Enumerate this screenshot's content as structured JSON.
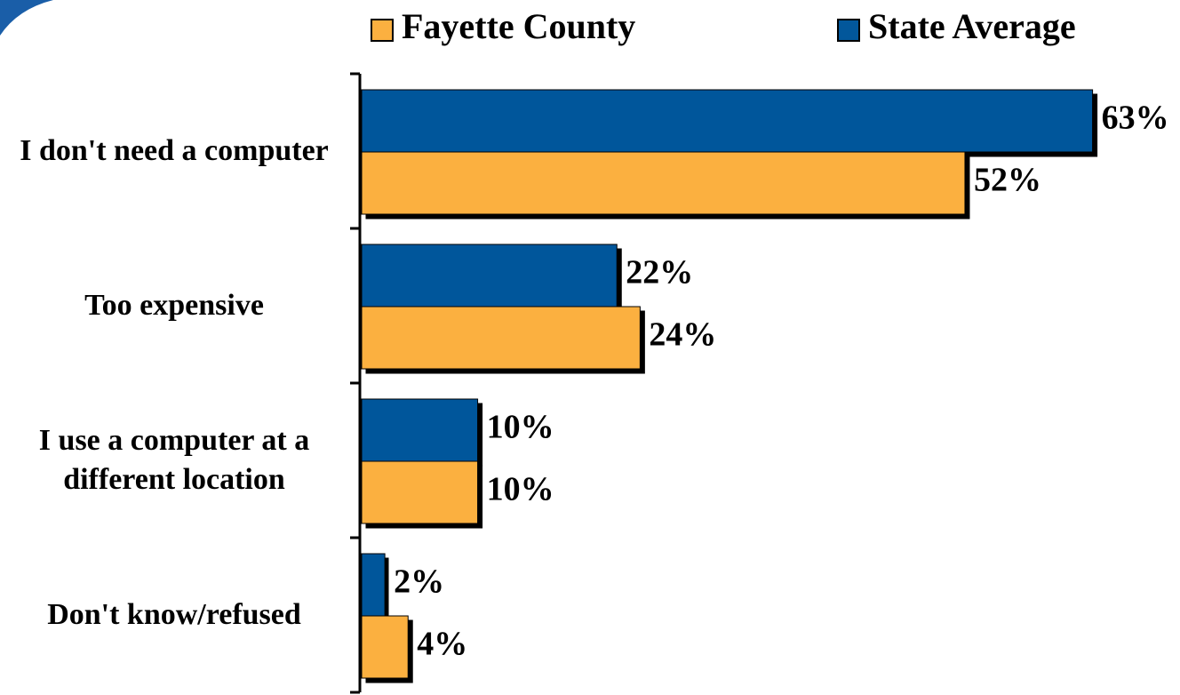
{
  "chart_data": {
    "type": "hbar",
    "categories": [
      "I don't need a computer",
      "Too expensive",
      "I use a computer at a different location",
      "Don't know/refused"
    ],
    "series": [
      {
        "name": "Fayette County",
        "color": "#fbb040",
        "values": [
          52,
          24,
          10,
          4
        ],
        "value_labels": [
          "52%",
          "24%",
          "10%",
          "4%"
        ]
      },
      {
        "name": "State Average",
        "color": "#02579b",
        "values": [
          63,
          22,
          10,
          2
        ],
        "value_labels": [
          "63%",
          "22%",
          "10%",
          "2%"
        ]
      }
    ],
    "xlim": [
      0,
      70
    ],
    "legend": "top"
  }
}
